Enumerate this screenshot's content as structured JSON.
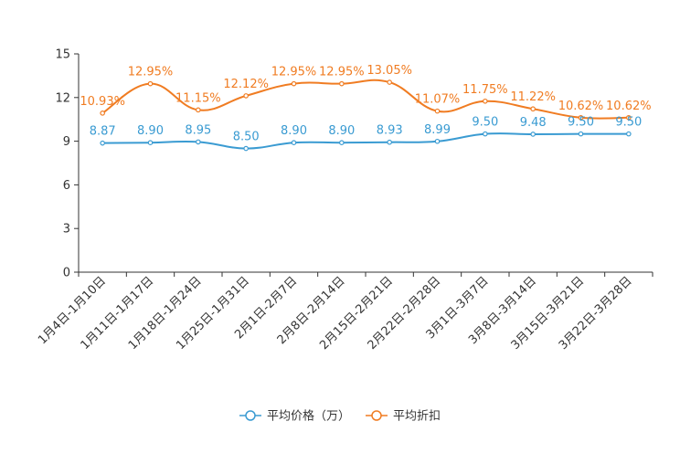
{
  "chart_data": {
    "type": "line",
    "title": "",
    "xlabel": "",
    "ylabel": "",
    "ylim": [
      0,
      15
    ],
    "yticks": [
      0,
      3,
      6,
      9,
      12,
      15
    ],
    "ytick_labels": [
      "0",
      "3",
      "6",
      "9",
      "12",
      "15"
    ],
    "grid": false,
    "legend_position": "bottom-center",
    "categories": [
      "1月4日-1月10日",
      "1月11日-1月17日",
      "1月18日-1月24日",
      "1月25日-1月31日",
      "2月1日-2月7日",
      "2月8日-2月14日",
      "2月15日-2月21日",
      "2月22日-2月28日",
      "3月1日-3月7日",
      "3月8日-3月14日",
      "3月15日-3月21日",
      "3月22日-3月28日"
    ],
    "series": [
      {
        "name": "平均价格（万）",
        "color": "#3a9bd2",
        "values": [
          8.87,
          8.9,
          8.95,
          8.5,
          8.9,
          8.9,
          8.93,
          8.99,
          9.5,
          9.48,
          9.5,
          9.5
        ],
        "labels": [
          "8.87",
          "8.90",
          "8.95",
          "8.50",
          "8.90",
          "8.90",
          "8.93",
          "8.99",
          "9.50",
          "9.48",
          "9.50",
          "9.50"
        ]
      },
      {
        "name": "平均折扣",
        "color": "#f07c22",
        "values": [
          10.93,
          12.95,
          11.15,
          12.12,
          12.95,
          12.95,
          13.05,
          11.07,
          11.75,
          11.22,
          10.62,
          10.62
        ],
        "labels": [
          "10.93%",
          "12.95%",
          "11.15%",
          "12.12%",
          "12.95%",
          "12.95%",
          "13.05%",
          "11.07%",
          "11.75%",
          "11.22%",
          "10.62%",
          "10.62%"
        ]
      }
    ]
  }
}
